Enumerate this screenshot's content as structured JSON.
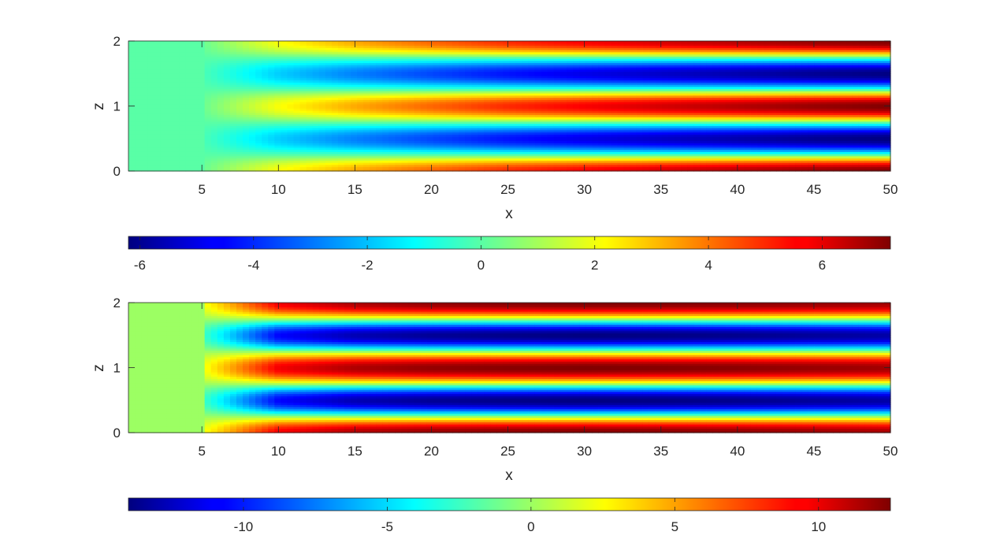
{
  "chart_data": [
    {
      "type": "heatmap",
      "title": "",
      "xlabel": "x",
      "ylabel": "z",
      "xlim": [
        0.2,
        50
      ],
      "ylim": [
        0,
        2
      ],
      "xticks": [
        5,
        10,
        15,
        20,
        25,
        30,
        35,
        40,
        45,
        50
      ],
      "yticks": [
        0,
        1,
        2
      ],
      "colormap": "jet",
      "clim": [
        -6.2,
        7.2
      ],
      "field_description": "zero for x < 5; for x > 5 cosine-like pattern in z with positive bands at z=0, 1, 2 and negative bands near z=0.5 and 1.5, amplitude growing with x",
      "amplitude_samples": {
        "x": [
          5,
          10,
          15,
          20,
          25,
          30,
          35,
          40,
          45,
          50
        ],
        "peak": [
          0.2,
          2.1,
          3.3,
          4.2,
          5.0,
          5.6,
          6.1,
          6.5,
          6.9,
          7.2
        ]
      },
      "colorbar": {
        "ticks": [
          -6,
          -4,
          -2,
          0,
          2,
          4,
          6
        ],
        "orientation": "horizontal",
        "location": "below"
      }
    },
    {
      "type": "heatmap",
      "title": "",
      "xlabel": "x",
      "ylabel": "z",
      "xlim": [
        0.2,
        50
      ],
      "ylim": [
        0,
        2
      ],
      "xticks": [
        5,
        10,
        15,
        20,
        25,
        30,
        35,
        40,
        45,
        50
      ],
      "yticks": [
        0,
        1,
        2
      ],
      "colormap": "jet",
      "clim": [
        -14,
        12.5
      ],
      "field_description": "zero for x < 5; for x > 5 cosine-like pattern in z with positive bands at z=0, 1, 2 and negative bands near z=0.5 and 1.5, saturating near x=30",
      "amplitude_samples": {
        "x": [
          5,
          10,
          15,
          20,
          25,
          30,
          35,
          40,
          45,
          50
        ],
        "peak": [
          2.0,
          9.5,
          11.3,
          12.0,
          12.3,
          12.5,
          12.4,
          12.2,
          11.9,
          11.6
        ]
      },
      "colorbar": {
        "ticks": [
          -10,
          -5,
          0,
          5,
          10
        ],
        "orientation": "horizontal",
        "location": "below"
      }
    }
  ]
}
